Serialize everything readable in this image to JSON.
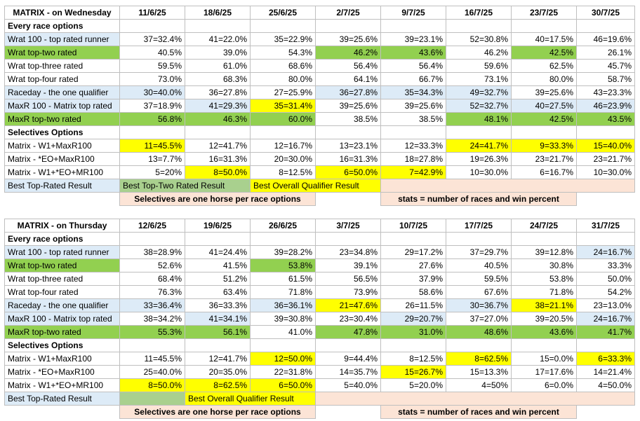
{
  "wed": {
    "title": "MATRIX - on Wednesday",
    "dates": [
      "11/6/25",
      "18/6/25",
      "25/6/25",
      "2/7/25",
      "9/7/25",
      "16/7/25",
      "23/7/25",
      "30/7/25"
    ],
    "sec1": "Every race options",
    "rows": [
      {
        "label": "Wrat 100 - top rated runner",
        "vals": [
          "37=32.4%",
          "41=22.0%",
          "35=22.9%",
          "39=25.6%",
          "39=23.1%",
          "52=30.8%",
          "40=17.5%",
          "46=19.6%"
        ]
      },
      {
        "label": "Wrat top-two rated",
        "vals": [
          "40.5%",
          "39.0%",
          "54.3%",
          "46.2%",
          "43.6%",
          "46.2%",
          "42.5%",
          "26.1%"
        ]
      },
      {
        "label": "Wrat top-three rated",
        "vals": [
          "59.5%",
          "61.0%",
          "68.6%",
          "56.4%",
          "56.4%",
          "59.6%",
          "62.5%",
          "45.7%"
        ]
      },
      {
        "label": "Wrat top-four rated",
        "vals": [
          "73.0%",
          "68.3%",
          "80.0%",
          "64.1%",
          "66.7%",
          "73.1%",
          "80.0%",
          "58.7%"
        ]
      },
      {
        "label": "Raceday - the one qualifier",
        "vals": [
          "30=40.0%",
          "36=27.8%",
          "27=25.9%",
          "36=27.8%",
          "35=34.3%",
          "49=32.7%",
          "39=25.6%",
          "43=23.3%"
        ]
      },
      {
        "label": "MaxR 100 - Matrix top rated",
        "vals": [
          "37=18.9%",
          "41=29.3%",
          "35=31.4%",
          "39=25.6%",
          "39=25.6%",
          "52=32.7%",
          "40=27.5%",
          "46=23.9%"
        ]
      },
      {
        "label": "MaxR top-two rated",
        "vals": [
          "56.8%",
          "46.3%",
          "60.0%",
          "38.5%",
          "38.5%",
          "48.1%",
          "42.5%",
          "43.5%"
        ]
      }
    ],
    "sec2": "Selectives Options",
    "srows": [
      {
        "label": "Matrix - W1+MaxR100",
        "vals": [
          "11=45.5%",
          "12=41.7%",
          "12=16.7%",
          "13=23.1%",
          "12=33.3%",
          "24=41.7%",
          "9=33.3%",
          "15=40.0%"
        ]
      },
      {
        "label": "Matrix - *EO+MaxR100",
        "vals": [
          "13=7.7%",
          "16=31.3%",
          "20=30.0%",
          "16=31.3%",
          "18=27.8%",
          "19=26.3%",
          "23=21.7%",
          "23=21.7%"
        ]
      },
      {
        "label": "Matrix - W1+*EO+MR100",
        "vals": [
          "5=20%",
          "8=50.0%",
          "8=12.5%",
          "6=50.0%",
          "7=42.9%",
          "10=30.0%",
          "6=16.7%",
          "10=30.0%"
        ]
      }
    ],
    "legend": {
      "a": "Best Top-Rated Result",
      "b": "Best Top-Two Rated Result",
      "c": "Best Overall Qualifier Result"
    },
    "note1": "Selectives are one horse per race options",
    "note2": "stats = number of races and win percent"
  },
  "thu": {
    "title": "MATRIX - on Thursday",
    "dates": [
      "12/6/25",
      "19/6/25",
      "26/6/25",
      "3/7/25",
      "10/7/25",
      "17/7/25",
      "24/7/25",
      "31/7/25"
    ],
    "sec1": "Every race options",
    "rows": [
      {
        "label": "Wrat 100 - top rated runner",
        "vals": [
          "38=28.9%",
          "41=24.4%",
          "39=28.2%",
          "23=34.8%",
          "29=17.2%",
          "37=29.7%",
          "39=12.8%",
          "24=16.7%"
        ]
      },
      {
        "label": "Wrat top-two rated",
        "vals": [
          "52.6%",
          "41.5%",
          "53.8%",
          "39.1%",
          "27.6%",
          "40.5%",
          "30.8%",
          "33.3%"
        ]
      },
      {
        "label": "Wrat top-three rated",
        "vals": [
          "68.4%",
          "51.2%",
          "61.5%",
          "56.5%",
          "37.9%",
          "59.5%",
          "53.8%",
          "50.0%"
        ]
      },
      {
        "label": "Wrat top-four rated",
        "vals": [
          "76.3%",
          "63.4%",
          "71.8%",
          "73.9%",
          "58.6%",
          "67.6%",
          "71.8%",
          "54.2%"
        ]
      },
      {
        "label": "Raceday - the one qualifier",
        "vals": [
          "33=36.4%",
          "36=33.3%",
          "36=36.1%",
          "21=47.6%",
          "26=11.5%",
          "30=36.7%",
          "38=21.1%",
          "23=13.0%"
        ]
      },
      {
        "label": "MaxR 100 - Matrix top rated",
        "vals": [
          "38=34.2%",
          "41=34.1%",
          "39=30.8%",
          "23=30.4%",
          "29=20.7%",
          "37=27.0%",
          "39=20.5%",
          "24=16.7%"
        ]
      },
      {
        "label": "MaxR top-two rated",
        "vals": [
          "55.3%",
          "56.1%",
          "41.0%",
          "47.8%",
          "31.0%",
          "48.6%",
          "43.6%",
          "41.7%"
        ]
      }
    ],
    "sec2": "Selectives Options",
    "srows": [
      {
        "label": "Matrix - W1+MaxR100",
        "vals": [
          "11=45.5%",
          "12=41.7%",
          "12=50.0%",
          "9=44.4%",
          "8=12.5%",
          "8=62.5%",
          "15=0.0%",
          "6=33.3%"
        ]
      },
      {
        "label": "Matrix - *EO+MaxR100",
        "vals": [
          "25=40.0%",
          "20=35.0%",
          "22=31.8%",
          "14=35.7%",
          "15=26.7%",
          "15=13.3%",
          "17=17.6%",
          "14=21.4%"
        ]
      },
      {
        "label": "Matrix - W1+*EO+MR100",
        "vals": [
          "8=50.0%",
          "8=62.5%",
          "6=50.0%",
          "5=40.0%",
          "5=20.0%",
          "4=50%",
          "6=0.0%",
          "4=50.0%"
        ]
      }
    ],
    "legend": {
      "a": "Best Top-Rated Result",
      "c": "Best Overall Qualifier Result"
    },
    "note1": "Selectives are one horse per race options",
    "note2": "stats = number of races and win percent"
  },
  "colors": {
    "blue": "#ddebf7",
    "green": "#a9d08e",
    "yellow": "#ffff00",
    "peach": "#fce4d6",
    "red": "#c00000"
  }
}
